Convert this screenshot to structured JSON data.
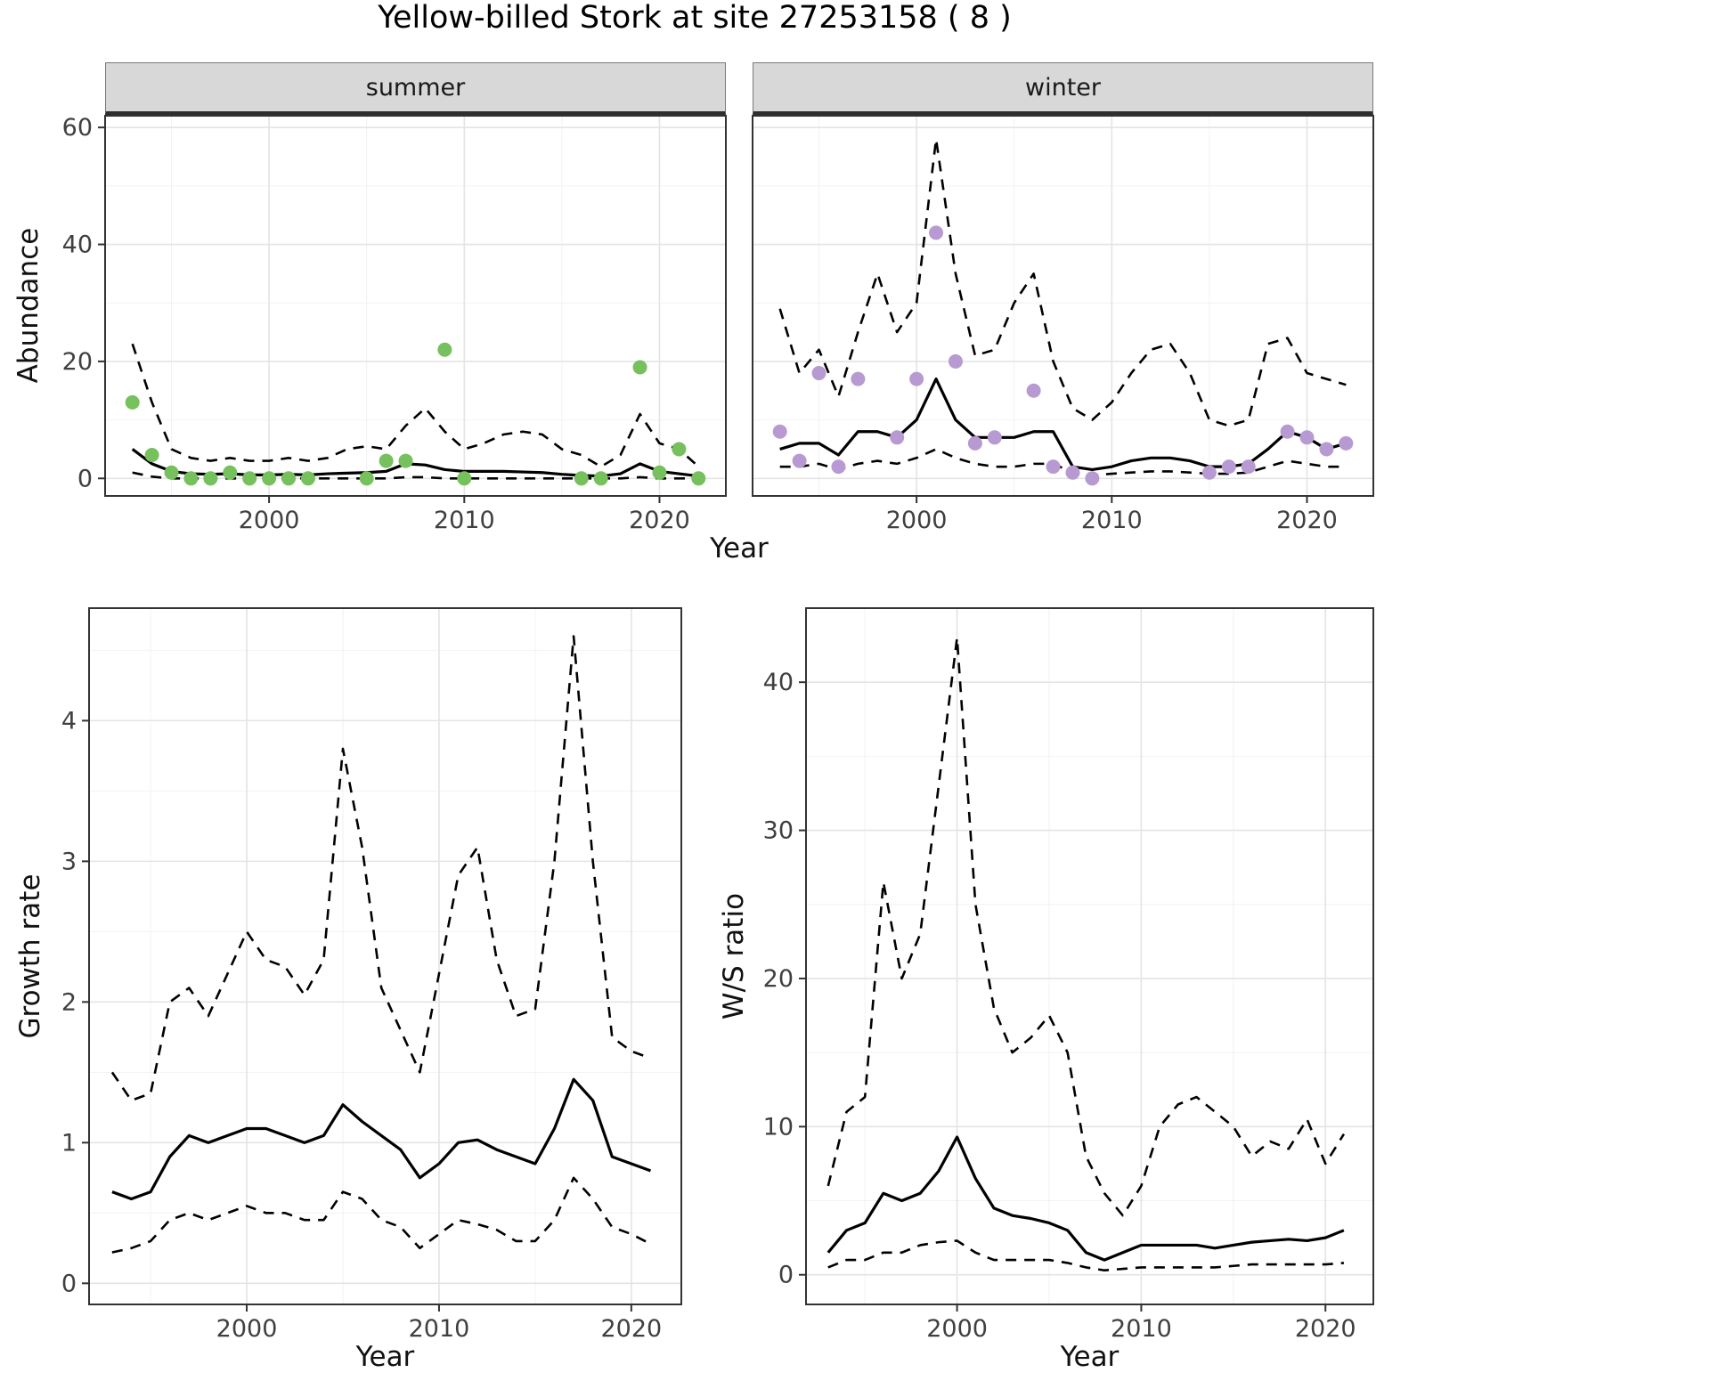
{
  "labels": {
    "title": "Yellow-billed Stork at site 27253158 ( 8 )",
    "facet_summer": "summer",
    "facet_winter": "winter",
    "y_abundance": "Abundance",
    "y_growth": "Growth rate",
    "y_ws": "W/S ratio",
    "x_year": "Year"
  },
  "theme": {
    "panel_bg": "#ffffff",
    "grid_major": "#e4e4e4",
    "grid_minor": "#f2f2f2",
    "panel_border": "#333333",
    "line_color": "#000000",
    "tick_color": "#333333",
    "summer_point_color": "#76c05d",
    "winter_point_color": "#b79ad2"
  },
  "chart_data": [
    {
      "panel": "summer",
      "type": "line",
      "facet": "summer",
      "xlabel": "Year",
      "ylabel": "Abundance",
      "xlim": [
        1991.6,
        2023.4
      ],
      "ylim": [
        -3,
        62
      ],
      "xticks": [
        2000,
        2010,
        2020
      ],
      "yticks": [
        0,
        20,
        40,
        60
      ],
      "x": [
        1993,
        1994,
        1995,
        1996,
        1997,
        1998,
        1999,
        2000,
        2001,
        2002,
        2003,
        2004,
        2005,
        2006,
        2007,
        2008,
        2009,
        2010,
        2011,
        2012,
        2013,
        2014,
        2015,
        2016,
        2017,
        2018,
        2019,
        2020,
        2021,
        2022
      ],
      "series": [
        {
          "name": "upper_95ci",
          "style": "dashed",
          "values": [
            23,
            13,
            5,
            3.5,
            3,
            3.5,
            3,
            3,
            3.5,
            3,
            3.5,
            5,
            5.5,
            5,
            9,
            12,
            8,
            5,
            6,
            7.5,
            8,
            7.5,
            5,
            4,
            2,
            4,
            11,
            6,
            5,
            2
          ]
        },
        {
          "name": "lower_95ci",
          "style": "dashed",
          "values": [
            1,
            0.3,
            0,
            0,
            0,
            0,
            0,
            0,
            0,
            0,
            0,
            0,
            0,
            0,
            0.2,
            0.2,
            0,
            0,
            0,
            0,
            0,
            0,
            0,
            0,
            0,
            0,
            0.2,
            0,
            0,
            0
          ]
        },
        {
          "name": "median_estimate",
          "style": "solid",
          "values": [
            5,
            2.5,
            1.2,
            0.8,
            0.7,
            0.8,
            0.6,
            0.6,
            0.7,
            0.6,
            0.8,
            0.9,
            1.0,
            1.2,
            2.5,
            2.3,
            1.5,
            1.2,
            1.2,
            1.2,
            1.1,
            1.0,
            0.7,
            0.5,
            0.4,
            0.8,
            2.5,
            1.2,
            0.8,
            0.4
          ]
        }
      ],
      "points": {
        "name": "observed_counts",
        "color": "#76c05d",
        "x": [
          1993,
          1994,
          1995,
          1996,
          1997,
          1998,
          1999,
          2000,
          2001,
          2002,
          2005,
          2006,
          2007,
          2009,
          2010,
          2016,
          2017,
          2019,
          2020,
          2021,
          2022
        ],
        "y": [
          13,
          4,
          1,
          0,
          0,
          1,
          0,
          0,
          0,
          0,
          0,
          3,
          3,
          22,
          0,
          0,
          0,
          19,
          1,
          5,
          0
        ]
      }
    },
    {
      "panel": "winter",
      "type": "line",
      "facet": "winter",
      "xlabel": "Year",
      "ylabel": "Abundance",
      "xlim": [
        1991.6,
        2023.4
      ],
      "ylim": [
        -3,
        62
      ],
      "xticks": [
        2000,
        2010,
        2020
      ],
      "yticks": [
        0,
        20,
        40,
        60
      ],
      "x": [
        1993,
        1994,
        1995,
        1996,
        1997,
        1998,
        1999,
        2000,
        2001,
        2002,
        2003,
        2004,
        2005,
        2006,
        2007,
        2008,
        2009,
        2010,
        2011,
        2012,
        2013,
        2014,
        2015,
        2016,
        2017,
        2018,
        2019,
        2020,
        2021,
        2022
      ],
      "series": [
        {
          "name": "upper_95ci",
          "style": "dashed",
          "values": [
            29,
            18,
            22,
            14,
            25,
            35,
            25,
            30,
            58,
            35,
            21,
            22,
            30,
            35,
            20,
            12,
            10,
            13,
            18,
            22,
            23,
            18,
            10,
            9,
            10,
            23,
            24,
            18,
            17,
            16
          ]
        },
        {
          "name": "lower_95ci",
          "style": "dashed",
          "values": [
            2,
            2,
            2.5,
            1.5,
            2.5,
            3,
            2.5,
            3.5,
            5,
            3.5,
            2.5,
            2,
            2,
            2.5,
            2.5,
            1,
            0.5,
            0.8,
            1,
            1.2,
            1.2,
            1,
            0.8,
            0.8,
            1,
            2,
            3,
            2.5,
            2,
            2
          ]
        },
        {
          "name": "median_estimate",
          "style": "solid",
          "values": [
            5,
            6,
            6,
            4,
            8,
            8,
            7,
            10,
            17,
            10,
            7,
            7,
            7,
            8,
            8,
            2,
            1.5,
            2,
            3,
            3.5,
            3.5,
            3,
            2,
            2,
            2.5,
            5,
            8,
            7,
            5,
            6
          ]
        }
      ],
      "points": {
        "name": "observed_counts",
        "color": "#b79ad2",
        "x": [
          1993,
          1994,
          1995,
          1996,
          1997,
          1999,
          2000,
          2001,
          2002,
          2003,
          2004,
          2006,
          2007,
          2008,
          2009,
          2015,
          2016,
          2017,
          2019,
          2020,
          2021,
          2022
        ],
        "y": [
          8,
          3,
          18,
          2,
          17,
          7,
          17,
          42,
          20,
          6,
          7,
          15,
          2,
          1,
          0,
          1,
          2,
          2,
          8,
          7,
          5,
          6
        ]
      }
    },
    {
      "panel": "growth",
      "type": "line",
      "facet": "",
      "xlabel": "Year",
      "ylabel": "Growth rate",
      "xlim": [
        1991.8,
        2022.6
      ],
      "ylim": [
        -0.15,
        4.8
      ],
      "xticks": [
        2000,
        2010,
        2020
      ],
      "yticks": [
        0,
        1,
        2,
        3,
        4
      ],
      "x": [
        1993,
        1994,
        1995,
        1996,
        1997,
        1998,
        1999,
        2000,
        2001,
        2002,
        2003,
        2004,
        2005,
        2006,
        2007,
        2008,
        2009,
        2010,
        2011,
        2012,
        2013,
        2014,
        2015,
        2016,
        2017,
        2018,
        2019,
        2020,
        2021
      ],
      "series": [
        {
          "name": "upper_95ci",
          "style": "dashed",
          "values": [
            1.5,
            1.3,
            1.35,
            2.0,
            2.1,
            1.9,
            2.2,
            2.5,
            2.3,
            2.25,
            2.05,
            2.3,
            3.8,
            3.1,
            2.1,
            1.8,
            1.5,
            2.2,
            2.9,
            3.1,
            2.3,
            1.9,
            1.95,
            3.0,
            4.6,
            3.0,
            1.75,
            1.65,
            1.6
          ]
        },
        {
          "name": "lower_95ci",
          "style": "dashed",
          "values": [
            0.22,
            0.25,
            0.3,
            0.45,
            0.5,
            0.45,
            0.5,
            0.55,
            0.5,
            0.5,
            0.45,
            0.45,
            0.65,
            0.6,
            0.45,
            0.4,
            0.25,
            0.35,
            0.45,
            0.42,
            0.38,
            0.3,
            0.3,
            0.45,
            0.75,
            0.6,
            0.4,
            0.35,
            0.28
          ]
        },
        {
          "name": "median_estimate",
          "style": "solid",
          "values": [
            0.65,
            0.6,
            0.65,
            0.9,
            1.05,
            1.0,
            1.05,
            1.1,
            1.1,
            1.05,
            1.0,
            1.05,
            1.27,
            1.15,
            1.05,
            0.95,
            0.75,
            0.85,
            1.0,
            1.02,
            0.95,
            0.9,
            0.85,
            1.1,
            1.45,
            1.3,
            0.9,
            0.85,
            0.8
          ]
        }
      ],
      "points": null
    },
    {
      "panel": "ws",
      "type": "line",
      "facet": "",
      "xlabel": "Year",
      "ylabel": "W/S ratio",
      "xlim": [
        1991.8,
        2022.6
      ],
      "ylim": [
        -2,
        45
      ],
      "xticks": [
        2000,
        2010,
        2020
      ],
      "yticks": [
        0,
        10,
        20,
        30,
        40
      ],
      "x": [
        1993,
        1994,
        1995,
        1996,
        1997,
        1998,
        1999,
        2000,
        2001,
        2002,
        2003,
        2004,
        2005,
        2006,
        2007,
        2008,
        2009,
        2010,
        2011,
        2012,
        2013,
        2014,
        2015,
        2016,
        2017,
        2018,
        2019,
        2020,
        2021
      ],
      "series": [
        {
          "name": "upper_95ci",
          "style": "dashed",
          "values": [
            6,
            11,
            12,
            26.5,
            20,
            23,
            33,
            43,
            25,
            18,
            15,
            16,
            17.5,
            15,
            8,
            5.5,
            4,
            6,
            10,
            11.5,
            12,
            11,
            10,
            8,
            9,
            8.5,
            10.5,
            7.5,
            9.5
          ]
        },
        {
          "name": "lower_95ci",
          "style": "dashed",
          "values": [
            0.5,
            1,
            1,
            1.5,
            1.5,
            2,
            2.2,
            2.3,
            1.5,
            1,
            1,
            1,
            1,
            0.8,
            0.5,
            0.3,
            0.4,
            0.5,
            0.5,
            0.5,
            0.5,
            0.5,
            0.6,
            0.7,
            0.7,
            0.7,
            0.7,
            0.7,
            0.8
          ]
        },
        {
          "name": "median_estimate",
          "style": "solid",
          "values": [
            1.5,
            3,
            3.5,
            5.5,
            5,
            5.5,
            7,
            9.3,
            6.5,
            4.5,
            4,
            3.8,
            3.5,
            3,
            1.5,
            1,
            1.5,
            2,
            2,
            2,
            2,
            1.8,
            2,
            2.2,
            2.3,
            2.4,
            2.3,
            2.5,
            3
          ]
        }
      ],
      "points": null
    }
  ]
}
